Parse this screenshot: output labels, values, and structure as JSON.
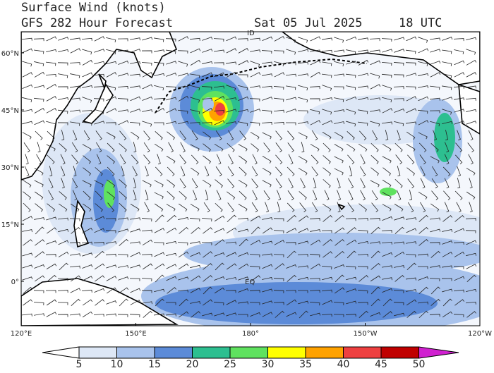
{
  "header": {
    "title": "Surface Wind (knots)",
    "model": "GFS 282 Hour Forecast",
    "date": "Sat 05 Jul 2025",
    "time": "18 UTC"
  },
  "map": {
    "lat_labels": [
      "60°N",
      "45°N",
      "30°N",
      "15°N",
      "0°"
    ],
    "lon_labels": [
      "120°E",
      "150°E",
      "180°",
      "150°W",
      "120°W"
    ],
    "annotations": [
      "ID",
      "EQ"
    ]
  },
  "colorbar": {
    "levels": [
      5,
      10,
      15,
      20,
      25,
      30,
      35,
      40,
      45,
      50
    ],
    "colors": [
      "#ffffff",
      "#dde7f6",
      "#a9c3ec",
      "#5c8bd8",
      "#2dbf90",
      "#5fe25f",
      "#ffff00",
      "#ffa200",
      "#ee4040",
      "#c00000",
      "#d020d0"
    ]
  }
}
